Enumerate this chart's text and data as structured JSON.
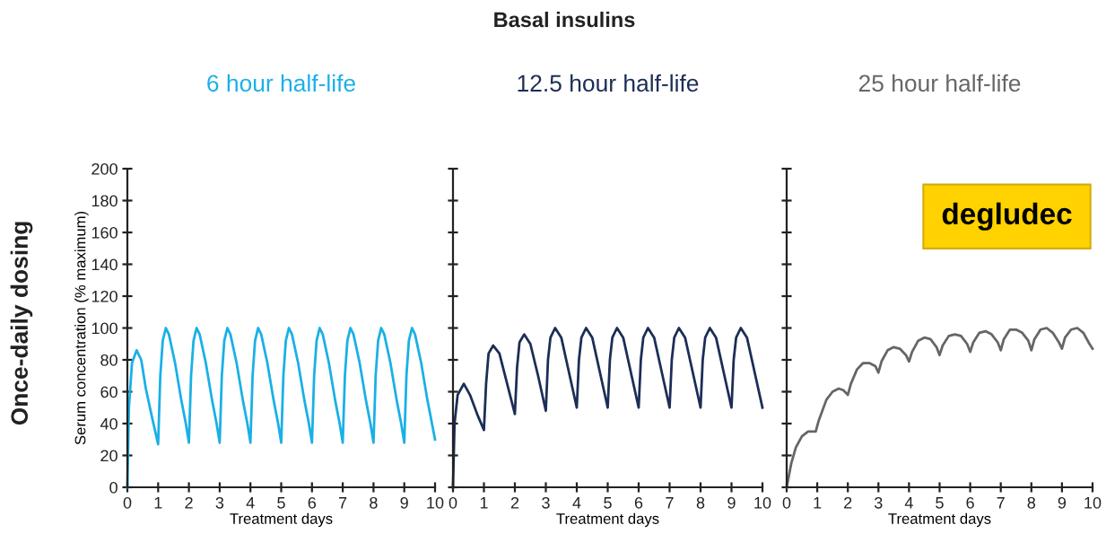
{
  "chart_data": [
    {
      "type": "line",
      "title": "6 hour half-life",
      "xlabel": "Treatment days",
      "ylabel": "Serum concentration (% maximum)",
      "annotations": [
        "Basal insulins",
        "Once-daily dosing"
      ],
      "xlim": [
        0,
        10
      ],
      "ylim": [
        0,
        200
      ],
      "xticks": [
        0,
        1,
        2,
        3,
        4,
        5,
        6,
        7,
        8,
        9,
        10
      ],
      "yticks": [
        0,
        20,
        40,
        60,
        80,
        100,
        120,
        140,
        160,
        180,
        200
      ],
      "grid": false,
      "legend": false,
      "marker": "none",
      "line_style": "solid",
      "series": [
        {
          "color": "#1ab0e6",
          "x": [
            0,
            0.05,
            0.15,
            0.3,
            0.45,
            0.6,
            0.8,
            1.0,
            1.07,
            1.15,
            1.25,
            1.35,
            1.55,
            1.75,
            1.9,
            2.0,
            2.07,
            2.15,
            2.25,
            2.35,
            2.55,
            2.75,
            2.9,
            3.0,
            3.07,
            3.15,
            3.25,
            3.35,
            3.55,
            3.75,
            3.9,
            4.0,
            4.07,
            4.15,
            4.25,
            4.35,
            4.55,
            4.75,
            4.9,
            5.0,
            5.07,
            5.15,
            5.25,
            5.35,
            5.55,
            5.75,
            5.9,
            6.0,
            6.07,
            6.15,
            6.25,
            6.35,
            6.55,
            6.75,
            6.9,
            7.0,
            7.07,
            7.15,
            7.25,
            7.35,
            7.55,
            7.75,
            7.9,
            8.0,
            8.07,
            8.15,
            8.25,
            8.35,
            8.55,
            8.75,
            8.9,
            9.0,
            9.07,
            9.15,
            9.25,
            9.35,
            9.55,
            9.75,
            9.9,
            10.0
          ],
          "values": [
            0,
            50,
            78,
            86,
            80,
            62,
            44,
            27,
            70,
            92,
            100,
            96,
            78,
            55,
            40,
            28,
            70,
            92,
            100,
            96,
            78,
            55,
            40,
            28,
            70,
            92,
            100,
            96,
            78,
            55,
            40,
            28,
            70,
            92,
            100,
            96,
            78,
            55,
            40,
            28,
            70,
            92,
            100,
            96,
            78,
            55,
            40,
            28,
            70,
            92,
            100,
            96,
            78,
            55,
            40,
            28,
            70,
            92,
            100,
            96,
            78,
            55,
            40,
            28,
            70,
            92,
            100,
            96,
            78,
            55,
            40,
            28,
            70,
            92,
            100,
            96,
            78,
            55,
            40,
            30
          ]
        }
      ]
    },
    {
      "type": "line",
      "title": "12.5 hour half-life",
      "xlabel": "Treatment days",
      "xlim": [
        0,
        10
      ],
      "ylim": [
        0,
        200
      ],
      "xticks": [
        0,
        1,
        2,
        3,
        4,
        5,
        6,
        7,
        8,
        9,
        10
      ],
      "yticks": [
        0,
        20,
        40,
        60,
        80,
        100,
        120,
        140,
        160,
        180,
        200
      ],
      "tick_labels": "x",
      "grid": false,
      "legend": false,
      "marker": "none",
      "line_style": "solid",
      "series": [
        {
          "color": "#1c2e57",
          "x": [
            0,
            0.05,
            0.15,
            0.35,
            0.55,
            0.8,
            1.0,
            1.07,
            1.15,
            1.3,
            1.5,
            1.75,
            2.0,
            2.07,
            2.15,
            2.3,
            2.5,
            2.75,
            3.0,
            3.07,
            3.15,
            3.3,
            3.5,
            3.75,
            4.0,
            4.07,
            4.15,
            4.3,
            4.5,
            4.75,
            5.0,
            5.07,
            5.15,
            5.3,
            5.5,
            5.75,
            6.0,
            6.07,
            6.15,
            6.3,
            6.5,
            6.75,
            7.0,
            7.07,
            7.15,
            7.3,
            7.5,
            7.75,
            8.0,
            8.07,
            8.15,
            8.3,
            8.5,
            8.75,
            9.0,
            9.07,
            9.15,
            9.3,
            9.5,
            9.75,
            10.0
          ],
          "values": [
            0,
            40,
            58,
            65,
            58,
            45,
            36,
            65,
            84,
            89,
            84,
            65,
            46,
            75,
            91,
            96,
            90,
            70,
            48,
            80,
            94,
            100,
            94,
            72,
            50,
            80,
            94,
            100,
            94,
            72,
            50,
            80,
            94,
            100,
            94,
            72,
            50,
            80,
            94,
            100,
            94,
            72,
            50,
            80,
            94,
            100,
            94,
            72,
            50,
            80,
            94,
            100,
            94,
            72,
            50,
            80,
            94,
            100,
            94,
            72,
            50
          ]
        }
      ]
    },
    {
      "type": "line",
      "title": "25 hour half-life",
      "xlabel": "Treatment days",
      "annotations": [
        "degludec"
      ],
      "xlim": [
        0,
        10
      ],
      "ylim": [
        0,
        200
      ],
      "xticks": [
        0,
        1,
        2,
        3,
        4,
        5,
        6,
        7,
        8,
        9,
        10
      ],
      "yticks": [
        0,
        20,
        40,
        60,
        80,
        100,
        120,
        140,
        160,
        180,
        200
      ],
      "tick_labels": "x",
      "grid": false,
      "legend": false,
      "marker": "none",
      "line_style": "solid",
      "series": [
        {
          "color": "#666666",
          "x": [
            0,
            0.15,
            0.3,
            0.5,
            0.7,
            0.95,
            1.05,
            1.3,
            1.5,
            1.7,
            1.85,
            2.0,
            2.1,
            2.3,
            2.5,
            2.7,
            2.9,
            3.0,
            3.1,
            3.3,
            3.5,
            3.7,
            3.9,
            4.0,
            4.1,
            4.3,
            4.5,
            4.7,
            4.9,
            5.0,
            5.1,
            5.3,
            5.5,
            5.7,
            5.9,
            6.0,
            6.1,
            6.3,
            6.5,
            6.7,
            6.9,
            7.0,
            7.1,
            7.3,
            7.5,
            7.7,
            7.9,
            8.0,
            8.1,
            8.3,
            8.5,
            8.7,
            8.9,
            9.0,
            9.1,
            9.3,
            9.5,
            9.7,
            9.9,
            10.0
          ],
          "values": [
            0,
            15,
            25,
            32,
            35,
            35,
            42,
            55,
            60,
            62,
            61,
            58,
            65,
            74,
            78,
            78,
            76,
            72,
            79,
            86,
            88,
            87,
            83,
            79,
            85,
            92,
            94,
            93,
            88,
            83,
            89,
            95,
            96,
            95,
            90,
            85,
            91,
            97,
            98,
            96,
            91,
            86,
            93,
            99,
            99,
            97,
            92,
            86,
            93,
            99,
            100,
            97,
            91,
            87,
            94,
            99,
            100,
            97,
            90,
            87
          ]
        }
      ]
    }
  ]
}
